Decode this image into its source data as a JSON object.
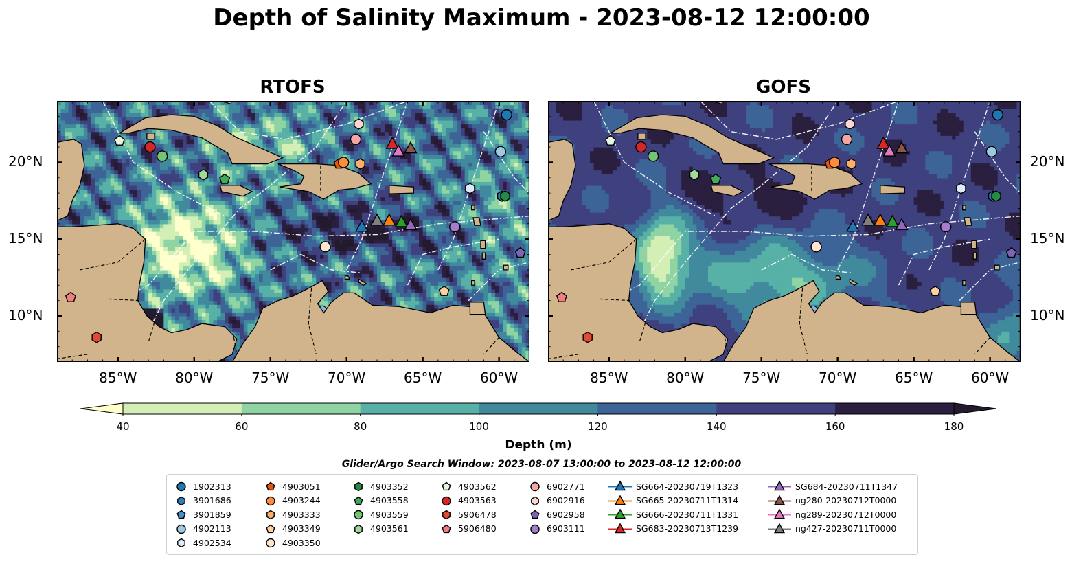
{
  "title": "Depth of Salinity Maximum - 2023-08-12 12:00:00",
  "chart_data": {
    "type": "heatmap",
    "title": "Depth of Salinity Maximum - 2023-08-12 12:00:00",
    "panels": [
      {
        "title": "RTOFS",
        "x_ticks": [
          "85°W",
          "80°W",
          "75°W",
          "70°W",
          "65°W",
          "60°W"
        ],
        "y_ticks": [
          "20°N",
          "15°N",
          "10°N"
        ]
      },
      {
        "title": "GOFS",
        "x_ticks": [
          "85°W",
          "80°W",
          "75°W",
          "70°W",
          "65°W",
          "60°W"
        ],
        "y_ticks": [
          "20°N",
          "15°N",
          "10°N"
        ]
      }
    ],
    "xlim": [
      -89,
      -58
    ],
    "ylim": [
      7,
      24
    ],
    "colorbar": {
      "label": "Depth (m)",
      "ticks": [
        "40",
        "60",
        "80",
        "100",
        "120",
        "140",
        "160",
        "180"
      ],
      "levels": [
        40,
        60,
        80,
        100,
        120,
        140,
        160,
        180
      ],
      "colors": [
        "#d3efb6",
        "#8fd4a2",
        "#57b1a7",
        "#418a9e",
        "#3c6496",
        "#3f417f",
        "#2b1f3f"
      ],
      "under_color": "#ffffcc",
      "over_color": "#231a2e",
      "extend": "both"
    },
    "land_color": "#d2b48c",
    "search_window": "Glider/Argo Search Window: 2023-08-07 13:00:00 to 2023-08-12 12:00:00",
    "legend": [
      {
        "label": "1902313",
        "marker": "circle",
        "color": "#1f77b4"
      },
      {
        "label": "3901686",
        "marker": "hexagon",
        "color": "#2c7fb8"
      },
      {
        "label": "3901859",
        "marker": "pentagon",
        "color": "#4292c6"
      },
      {
        "label": "4902113",
        "marker": "circle",
        "color": "#9ecae1"
      },
      {
        "label": "4902534",
        "marker": "hexagon",
        "color": "#deebf7"
      },
      {
        "label": "4903051",
        "marker": "pentagon",
        "color": "#e6550d"
      },
      {
        "label": "4903244",
        "marker": "circle",
        "color": "#fd8d3c"
      },
      {
        "label": "4903333",
        "marker": "hexagon",
        "color": "#fdae6b"
      },
      {
        "label": "4903349",
        "marker": "pentagon",
        "color": "#fdd0a2"
      },
      {
        "label": "4903350",
        "marker": "circle",
        "color": "#fee6ce"
      },
      {
        "label": "4903352",
        "marker": "hexagon",
        "color": "#238b45"
      },
      {
        "label": "4903558",
        "marker": "pentagon",
        "color": "#41ab5d"
      },
      {
        "label": "4903559",
        "marker": "circle",
        "color": "#74c476"
      },
      {
        "label": "4903561",
        "marker": "hexagon",
        "color": "#a1d99b"
      },
      {
        "label": "4903562",
        "marker": "pentagon",
        "color": "#e5f5e0"
      },
      {
        "label": "4903563",
        "marker": "circle",
        "color": "#d62728"
      },
      {
        "label": "5906478",
        "marker": "hexagon",
        "color": "#e34a33"
      },
      {
        "label": "5906480",
        "marker": "pentagon",
        "color": "#f08080"
      },
      {
        "label": "6902771",
        "marker": "circle",
        "color": "#f4a6a6"
      },
      {
        "label": "6902916",
        "marker": "hexagon",
        "color": "#fcd5d5"
      },
      {
        "label": "6902958",
        "marker": "pentagon",
        "color": "#8064b4"
      },
      {
        "label": "6903111",
        "marker": "circle",
        "color": "#a67dcc"
      },
      {
        "label": "SG664-20230719T1323",
        "marker": "triangle",
        "color": "#1f77b4"
      },
      {
        "label": "SG665-20230711T1314",
        "marker": "triangle",
        "color": "#ff7f0e"
      },
      {
        "label": "SG666-20230711T1331",
        "marker": "triangle",
        "color": "#2ca02c"
      },
      {
        "label": "SG683-20230713T1239",
        "marker": "triangle",
        "color": "#d62728"
      },
      {
        "label": "SG684-20230711T1347",
        "marker": "triangle",
        "color": "#9467bd"
      },
      {
        "label": "ng280-20230712T0000",
        "marker": "triangle",
        "color": "#8c564b"
      },
      {
        "label": "ng289-20230712T0000",
        "marker": "triangle",
        "color": "#e377c2"
      },
      {
        "label": "ng427-20230711T0000",
        "marker": "triangle",
        "color": "#7f7f7f"
      }
    ],
    "points": [
      {
        "label": "1902313",
        "lon": -59.5,
        "lat": 23.1
      },
      {
        "label": "3901686",
        "lon": -59.8,
        "lat": 17.8
      },
      {
        "label": "3901859",
        "lon": -58.6,
        "lat": 14.1
      },
      {
        "label": "4902113",
        "lon": -59.9,
        "lat": 20.7
      },
      {
        "label": "4902534",
        "lon": -61.9,
        "lat": 18.3
      },
      {
        "label": "4903051",
        "lon": -70.5,
        "lat": 19.9
      },
      {
        "label": "4903244",
        "lon": -70.2,
        "lat": 20.0
      },
      {
        "label": "4903333",
        "lon": -69.1,
        "lat": 19.9
      },
      {
        "label": "4903349",
        "lon": -63.6,
        "lat": 11.6
      },
      {
        "label": "4903350",
        "lon": -71.4,
        "lat": 14.5
      },
      {
        "label": "4903352",
        "lon": -59.6,
        "lat": 17.8
      },
      {
        "label": "4903558",
        "lon": -78.0,
        "lat": 18.9
      },
      {
        "label": "4903559",
        "lon": -82.1,
        "lat": 20.4
      },
      {
        "label": "4903561",
        "lon": -79.4,
        "lat": 19.2
      },
      {
        "label": "4903562",
        "lon": -84.9,
        "lat": 21.4
      },
      {
        "label": "4903563",
        "lon": -82.9,
        "lat": 21.0
      },
      {
        "label": "5906478",
        "lon": -86.4,
        "lat": 8.6
      },
      {
        "label": "5906480",
        "lon": -88.1,
        "lat": 11.2
      },
      {
        "label": "6902771",
        "lon": -69.4,
        "lat": 21.5
      },
      {
        "label": "6902916",
        "lon": -69.2,
        "lat": 22.5
      },
      {
        "label": "6902958",
        "lon": -58.6,
        "lat": 14.1
      },
      {
        "label": "6903111",
        "lon": -62.9,
        "lat": 15.8
      },
      {
        "label": "SG664-20230719T1323",
        "lon": -69.0,
        "lat": 15.8
      },
      {
        "label": "SG665-20230711T1314",
        "lon": -67.2,
        "lat": 16.2
      },
      {
        "label": "SG666-20230711T1331",
        "lon": -66.4,
        "lat": 16.1
      },
      {
        "label": "SG683-20230713T1239",
        "lon": -67.0,
        "lat": 21.2
      },
      {
        "label": "SG684-20230711T1347",
        "lon": -65.8,
        "lat": 15.9
      },
      {
        "label": "ng280-20230712T0000",
        "lon": -65.8,
        "lat": 20.9
      },
      {
        "label": "ng289-20230712T0000",
        "lon": -66.6,
        "lat": 20.7
      },
      {
        "label": "ng427-20230711T0000",
        "lon": -68.0,
        "lat": 16.2
      }
    ]
  }
}
